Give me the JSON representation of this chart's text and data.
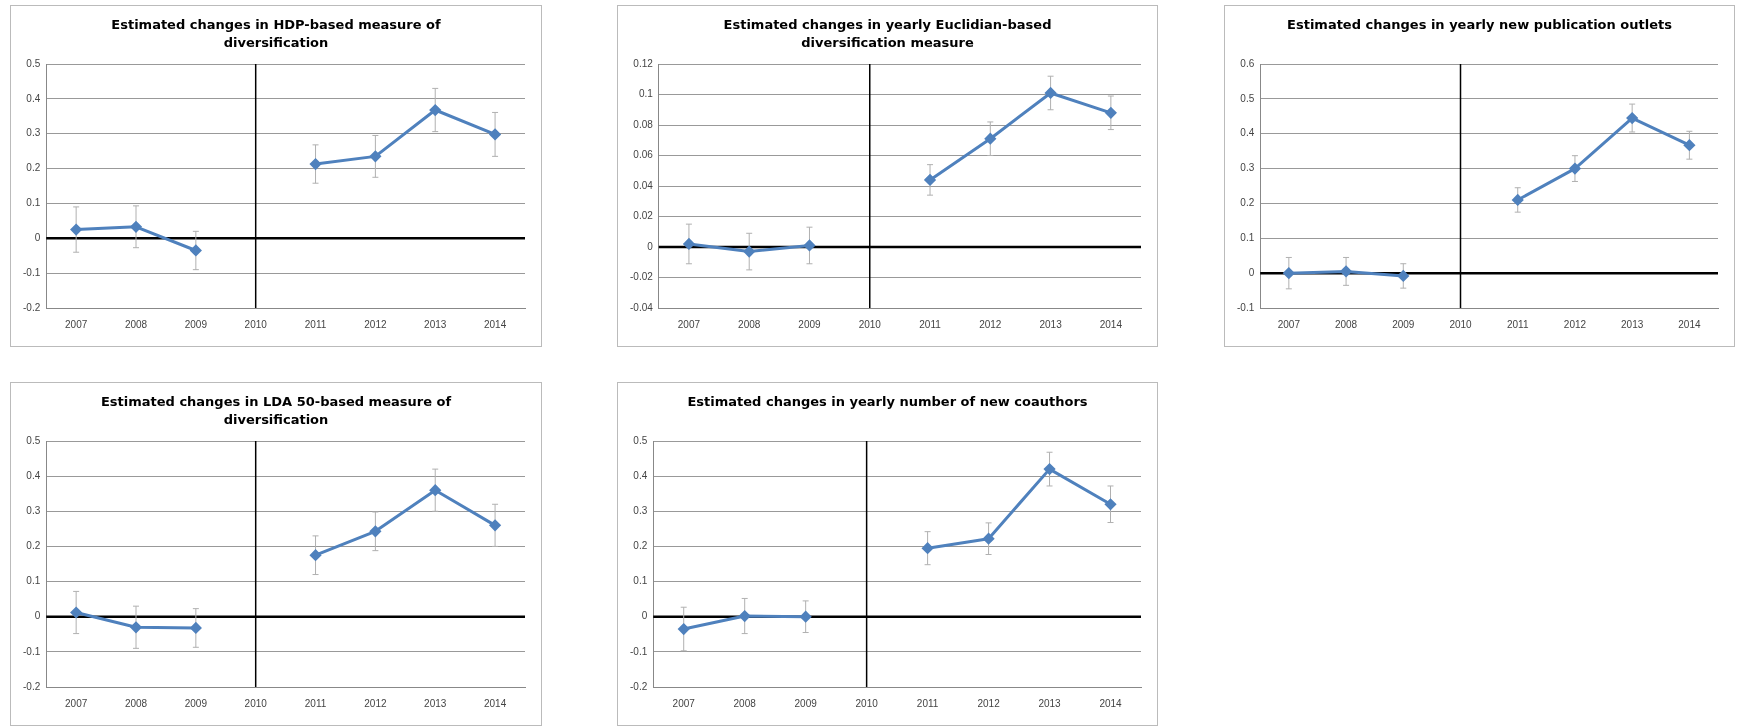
{
  "chart_data": [
    {
      "type": "line",
      "title": "Estimated changes in HDP-based measure of diversification",
      "categories": [
        "2007",
        "2008",
        "2009",
        "2010",
        "2011",
        "2012",
        "2013",
        "2014"
      ],
      "series": [
        {
          "color": "#4f81bd",
          "values": [
            0.025,
            0.033,
            -0.035,
            null,
            0.213,
            0.235,
            0.368,
            0.298
          ],
          "errors": [
            0.065,
            0.06,
            0.055,
            null,
            0.055,
            0.06,
            0.062,
            0.063
          ]
        }
      ],
      "ylim": [
        -0.2,
        0.5
      ],
      "yticks": [
        -0.2,
        -0.1,
        0,
        0.1,
        0.2,
        0.3,
        0.4,
        0.5
      ],
      "grid": "y",
      "marker": "diamond",
      "legend": false,
      "ref_lines": [
        {
          "axis": "x",
          "value": "2010",
          "color": "#000000"
        },
        {
          "axis": "y",
          "value": 0,
          "color": "#000000"
        }
      ]
    },
    {
      "type": "line",
      "title": "Estimated changes in yearly Euclidian-based diversification measure",
      "categories": [
        "2007",
        "2008",
        "2009",
        "2010",
        "2011",
        "2012",
        "2013",
        "2014"
      ],
      "series": [
        {
          "color": "#4f81bd",
          "values": [
            0.002,
            -0.003,
            0.001,
            null,
            0.044,
            0.071,
            0.101,
            0.088
          ],
          "errors": [
            0.013,
            0.012,
            0.012,
            null,
            0.01,
            0.011,
            0.011,
            0.011
          ]
        }
      ],
      "ylim": [
        -0.04,
        0.12
      ],
      "yticks": [
        -0.04,
        -0.02,
        0,
        0.02,
        0.04,
        0.06,
        0.08,
        0.1,
        0.12
      ],
      "grid": "y",
      "marker": "diamond",
      "legend": false,
      "ref_lines": [
        {
          "axis": "x",
          "value": "2010",
          "color": "#000000"
        },
        {
          "axis": "y",
          "value": 0,
          "color": "#000000"
        }
      ]
    },
    {
      "type": "line",
      "title": "Estimated changes in yearly new publication outlets",
      "categories": [
        "2007",
        "2008",
        "2009",
        "2010",
        "2011",
        "2012",
        "2013",
        "2014"
      ],
      "series": [
        {
          "color": "#4f81bd",
          "values": [
            0.0,
            0.005,
            -0.008,
            null,
            0.21,
            0.3,
            0.445,
            0.367
          ],
          "errors": [
            0.045,
            0.04,
            0.035,
            null,
            0.035,
            0.037,
            0.04,
            0.04
          ]
        }
      ],
      "ylim": [
        -0.1,
        0.6
      ],
      "yticks": [
        -0.1,
        0,
        0.1,
        0.2,
        0.3,
        0.4,
        0.5,
        0.6
      ],
      "grid": "y",
      "marker": "diamond",
      "legend": false,
      "ref_lines": [
        {
          "axis": "x",
          "value": "2010",
          "color": "#000000"
        },
        {
          "axis": "y",
          "value": 0,
          "color": "#000000"
        }
      ]
    },
    {
      "type": "line",
      "title": "Estimated changes in LDA 50-based measure of diversification",
      "categories": [
        "2007",
        "2008",
        "2009",
        "2010",
        "2011",
        "2012",
        "2013",
        "2014"
      ],
      "series": [
        {
          "color": "#4f81bd",
          "values": [
            0.012,
            -0.03,
            -0.032,
            null,
            0.175,
            0.243,
            0.36,
            0.26
          ],
          "errors": [
            0.06,
            0.06,
            0.055,
            null,
            0.055,
            0.055,
            0.06,
            0.06
          ]
        }
      ],
      "ylim": [
        -0.2,
        0.5
      ],
      "yticks": [
        -0.2,
        -0.1,
        0,
        0.1,
        0.2,
        0.3,
        0.4,
        0.5
      ],
      "grid": "y",
      "marker": "diamond",
      "legend": false,
      "ref_lines": [
        {
          "axis": "x",
          "value": "2010",
          "color": "#000000"
        },
        {
          "axis": "y",
          "value": 0,
          "color": "#000000"
        }
      ]
    },
    {
      "type": "line",
      "title": "Estimated changes in yearly number of new coauthors",
      "categories": [
        "2007",
        "2008",
        "2009",
        "2010",
        "2011",
        "2012",
        "2013",
        "2014"
      ],
      "series": [
        {
          "color": "#4f81bd",
          "values": [
            -0.035,
            0.002,
            0.0,
            null,
            0.195,
            0.222,
            0.42,
            0.32
          ],
          "errors": [
            0.062,
            0.05,
            0.045,
            null,
            0.047,
            0.045,
            0.048,
            0.052
          ]
        }
      ],
      "ylim": [
        -0.2,
        0.5
      ],
      "yticks": [
        -0.2,
        -0.1,
        0,
        0.1,
        0.2,
        0.3,
        0.4,
        0.5
      ],
      "grid": "y",
      "marker": "diamond",
      "legend": false,
      "ref_lines": [
        {
          "axis": "x",
          "value": "2010",
          "color": "#000000"
        },
        {
          "axis": "y",
          "value": 0,
          "color": "#000000"
        }
      ]
    }
  ]
}
